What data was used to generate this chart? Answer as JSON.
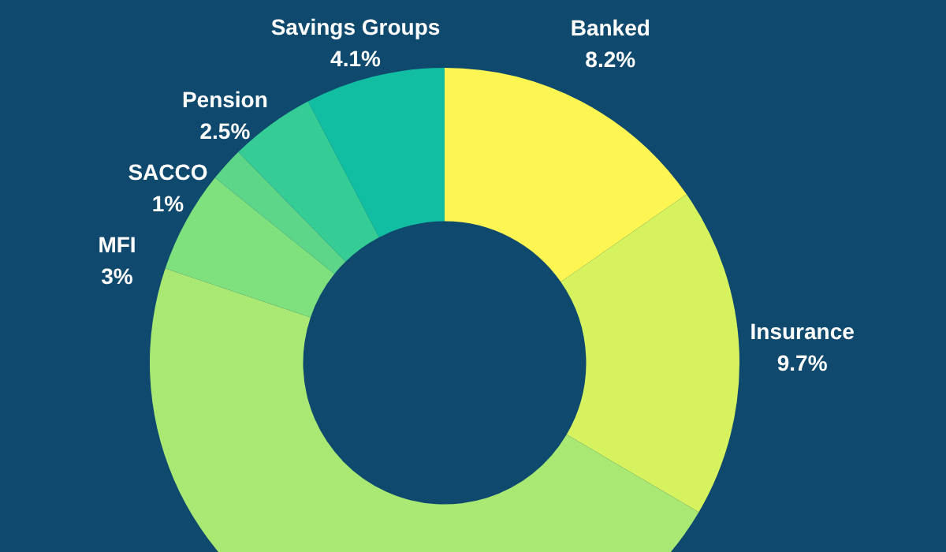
{
  "chart_data": {
    "type": "donut",
    "categories": [
      "Banked",
      "Insurance",
      null,
      "MFI",
      "SACCO",
      "Pension",
      "Savings Groups"
    ],
    "values": [
      8.2,
      9.7,
      25,
      3,
      1,
      2.5,
      4.1
    ],
    "value_labels": [
      "8.2%",
      "9.7%",
      null,
      "3%",
      "1%",
      "2.5%",
      "4.1%"
    ],
    "colors": [
      "#fdf652",
      "#d6f25f",
      "#a9e973",
      "#7fe07e",
      "#5ed689",
      "#36cc95",
      "#12bea2"
    ],
    "legend": false
  }
}
